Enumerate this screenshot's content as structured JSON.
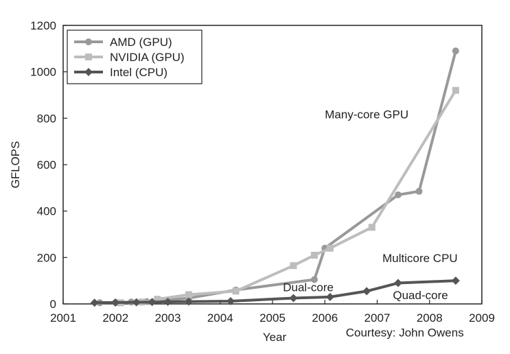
{
  "chart_data": {
    "type": "line",
    "xlabel": "Year",
    "ylabel": "GFLOPS",
    "xlim": [
      2001,
      2009
    ],
    "ylim": [
      0,
      1200
    ],
    "x_ticks": [
      2001,
      2002,
      2003,
      2004,
      2005,
      2006,
      2007,
      2008,
      2009
    ],
    "y_ticks": [
      0,
      200,
      400,
      600,
      800,
      1000,
      1200
    ],
    "grid": false,
    "legend_position": "top-left",
    "series": [
      {
        "name": "AMD (GPU)",
        "color": "#999999",
        "marker": "circle",
        "x": [
          2001.7,
          2002.0,
          2002.3,
          2002.6,
          2002.9,
          2003.4,
          2004.3,
          2005.8,
          2006.0,
          2007.4,
          2007.8,
          2008.5
        ],
        "y": [
          5,
          6,
          8,
          10,
          15,
          25,
          60,
          105,
          240,
          470,
          485,
          1090
        ]
      },
      {
        "name": "NVIDIA (GPU)",
        "color": "#bdbdbd",
        "marker": "square",
        "x": [
          2002.1,
          2002.5,
          2002.8,
          2003.4,
          2004.3,
          2005.4,
          2005.8,
          2006.1,
          2006.9,
          2008.5
        ],
        "y": [
          5,
          8,
          20,
          40,
          55,
          165,
          210,
          240,
          330,
          920
        ]
      },
      {
        "name": "Intel (CPU)",
        "color": "#555555",
        "marker": "diamond",
        "x": [
          2001.6,
          2002.0,
          2002.4,
          2002.7,
          2003.0,
          2003.4,
          2004.2,
          2005.4,
          2006.1,
          2006.8,
          2007.4,
          2008.5
        ],
        "y": [
          5,
          6,
          7,
          8,
          9,
          10,
          12,
          25,
          30,
          55,
          90,
          100
        ]
      }
    ],
    "annotations": [
      {
        "text": "Many-core GPU",
        "x": 2006.0,
        "y": 800
      },
      {
        "text": "Multicore CPU",
        "x": 2007.1,
        "y": 180
      },
      {
        "text": "Dual-core",
        "x": 2005.2,
        "y": 55
      },
      {
        "text": "Quad-core",
        "x": 2007.3,
        "y": 20
      },
      {
        "text": "Courtesy: John Owens",
        "x": 2006.4,
        "y": -140
      }
    ]
  }
}
